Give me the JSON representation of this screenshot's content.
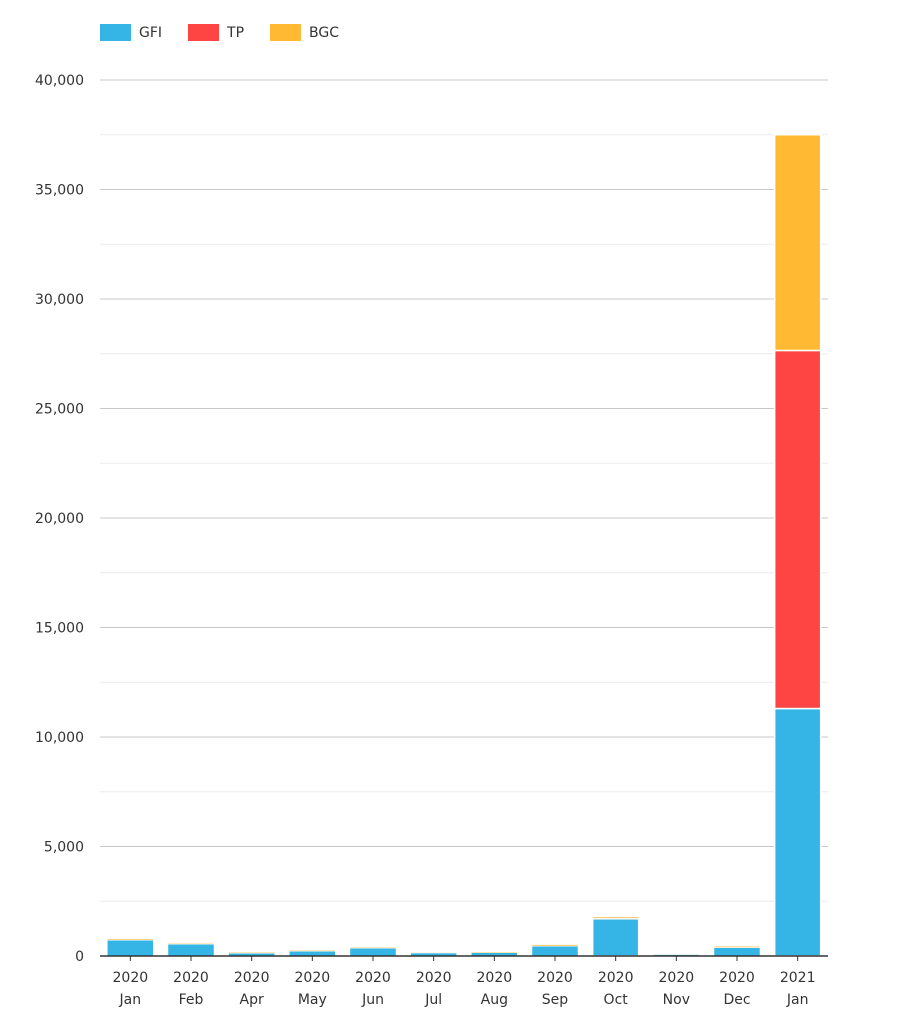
{
  "chart_data": {
    "type": "bar",
    "stacked": true,
    "categories": [
      [
        "2020",
        "Jan"
      ],
      [
        "2020",
        "Feb"
      ],
      [
        "2020",
        "Apr"
      ],
      [
        "2020",
        "May"
      ],
      [
        "2020",
        "Jun"
      ],
      [
        "2020",
        "Jul"
      ],
      [
        "2020",
        "Aug"
      ],
      [
        "2020",
        "Sep"
      ],
      [
        "2020",
        "Oct"
      ],
      [
        "2020",
        "Nov"
      ],
      [
        "2020",
        "Dec"
      ],
      [
        "2021",
        "Jan"
      ]
    ],
    "series": [
      {
        "name": "GFI",
        "color": "#35b5e5",
        "values": [
          720,
          540,
          130,
          220,
          360,
          140,
          150,
          450,
          1700,
          70,
          380,
          11300
        ]
      },
      {
        "name": "TP",
        "color": "#ff4444",
        "values": [
          10,
          10,
          5,
          5,
          5,
          5,
          5,
          10,
          20,
          5,
          10,
          16350
        ]
      },
      {
        "name": "BGC",
        "color": "#ffb933",
        "values": [
          50,
          40,
          40,
          40,
          40,
          30,
          40,
          60,
          60,
          20,
          50,
          9850
        ]
      }
    ],
    "yticks": [
      "0",
      "5,000",
      "10,000",
      "15,000",
      "20,000",
      "25,000",
      "30,000",
      "35,000",
      "40,000"
    ],
    "ylim": [
      0,
      40000
    ],
    "grid": true,
    "legend_position": "top-left",
    "title": "",
    "xlabel": "",
    "ylabel": ""
  }
}
